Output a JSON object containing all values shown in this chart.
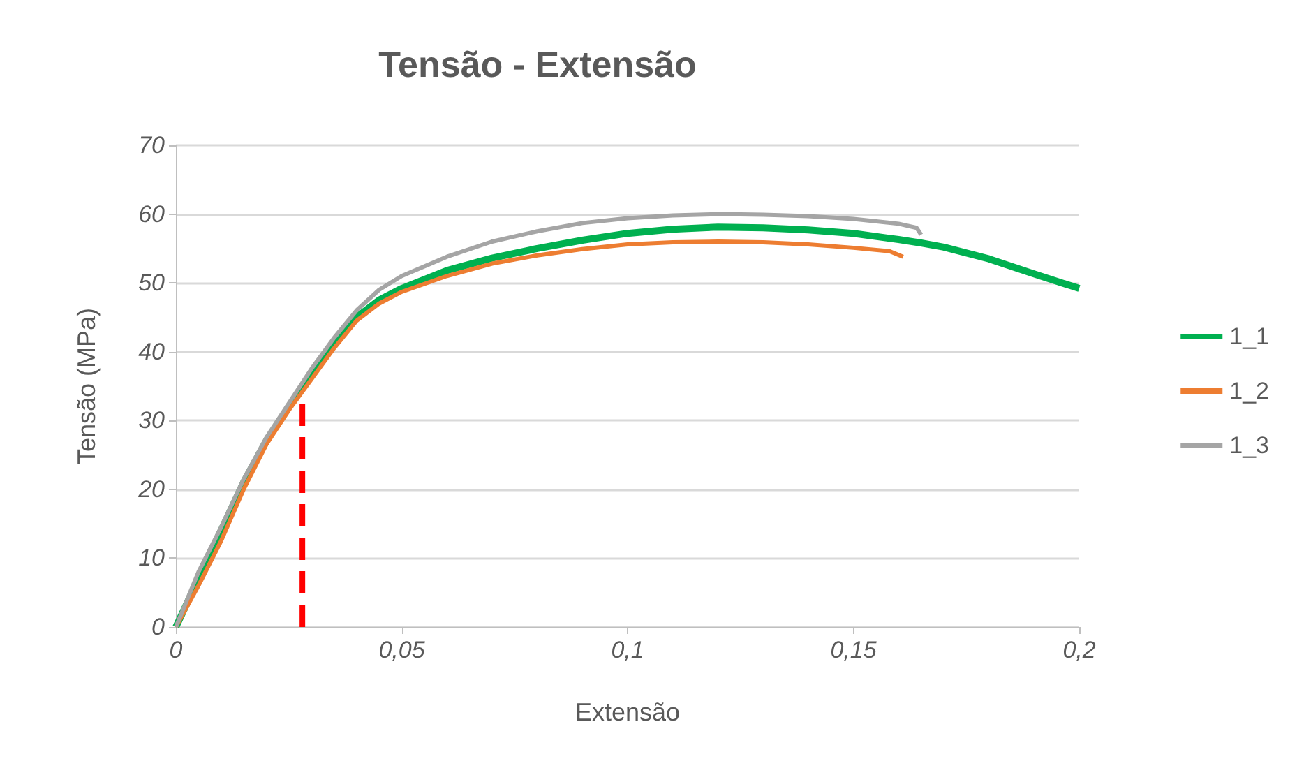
{
  "chart_data": {
    "type": "line",
    "title": "Tensão - Extensão",
    "xlabel": "Extensão",
    "ylabel": "Tensão (MPa)",
    "xlim": [
      0,
      0.2
    ],
    "xticks": [
      {
        "value": 0,
        "label": "0"
      },
      {
        "value": 0.05,
        "label": "0,05"
      },
      {
        "value": 0.1,
        "label": "0,1"
      },
      {
        "value": 0.15,
        "label": "0,15"
      },
      {
        "value": 0.2,
        "label": "0,2"
      }
    ],
    "ylim": [
      0,
      70
    ],
    "yticks": [
      0,
      10,
      20,
      30,
      40,
      50,
      60,
      70
    ],
    "grid": "y",
    "legend": "right",
    "marker": "none",
    "line_style": "solid",
    "series": [
      {
        "name": "1_1",
        "color": "#00b050",
        "x": [
          0,
          0.005,
          0.01,
          0.015,
          0.02,
          0.025,
          0.03,
          0.035,
          0.04,
          0.045,
          0.05,
          0.06,
          0.07,
          0.08,
          0.09,
          0.1,
          0.11,
          0.12,
          0.13,
          0.14,
          0.15,
          0.16,
          0.165,
          0.17,
          0.18,
          0.19,
          0.2
        ],
        "values": [
          0,
          7,
          14,
          21,
          27,
          32,
          36.5,
          41,
          45,
          47.5,
          49.2,
          51.8,
          53.6,
          55,
          56.2,
          57.2,
          57.8,
          58.1,
          58,
          57.7,
          57.2,
          56.3,
          55.8,
          55.2,
          53.5,
          51.3,
          49.2
        ]
      },
      {
        "name": "1_2",
        "color": "#ed7d31",
        "x": [
          0,
          0.005,
          0.01,
          0.015,
          0.02,
          0.025,
          0.03,
          0.035,
          0.04,
          0.045,
          0.05,
          0.06,
          0.07,
          0.08,
          0.09,
          0.1,
          0.11,
          0.12,
          0.13,
          0.14,
          0.15,
          0.158,
          0.161
        ],
        "values": [
          0,
          6,
          12.5,
          20,
          26.5,
          31.5,
          36,
          40.5,
          44.5,
          47,
          48.7,
          51,
          52.8,
          54,
          54.9,
          55.6,
          55.9,
          56,
          55.9,
          55.6,
          55.1,
          54.6,
          53.8
        ]
      },
      {
        "name": "1_3",
        "color": "#a5a5a5",
        "x": [
          0,
          0.005,
          0.01,
          0.015,
          0.02,
          0.025,
          0.03,
          0.035,
          0.04,
          0.045,
          0.05,
          0.06,
          0.07,
          0.08,
          0.09,
          0.1,
          0.11,
          0.12,
          0.13,
          0.14,
          0.15,
          0.16,
          0.164,
          0.165
        ],
        "values": [
          0,
          8,
          14.5,
          21.5,
          27.5,
          32.5,
          37.5,
          42,
          46,
          49,
          51,
          53.8,
          56,
          57.5,
          58.7,
          59.4,
          59.8,
          60,
          59.9,
          59.7,
          59.3,
          58.6,
          58,
          57
        ]
      },
      {
        "color": "#ff0000",
        "line_style": "dashed",
        "x": [
          0.028,
          0.028
        ],
        "values": [
          0,
          33
        ]
      }
    ]
  }
}
